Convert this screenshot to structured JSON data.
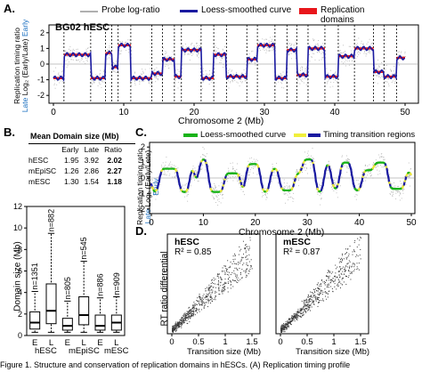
{
  "panelA": {
    "letter": "A.",
    "legend": {
      "probe": "Probe log-ratio",
      "loess": "Loess-smoothed curve",
      "domains": "Replication domains"
    },
    "cell_label": "BG02 hESC",
    "ylabel_main": "Replication timing ratio",
    "ylabel_late": "Late",
    "ylabel_early": "Early",
    "ylabel_log": "Log₂ (Early/Late)",
    "yticks": [
      "2",
      "1",
      "0",
      "-1",
      "-2"
    ],
    "xticks": [
      "0",
      "10",
      "20",
      "30",
      "40",
      "50"
    ],
    "xlabel": "Chromosome 2 (Mb)",
    "colors": {
      "probe": "#b0b0b0",
      "loess": "#1a1aa0",
      "domains": "#e8161b",
      "boundary": "#000000"
    }
  },
  "panelB": {
    "letter": "B.",
    "table_title": "Mean Domain size (Mb)",
    "columns": [
      "Early",
      "Late",
      "Ratio"
    ],
    "rows": [
      {
        "name": "hESC",
        "early": "1.95",
        "late": "3.92",
        "ratio": "2.02"
      },
      {
        "name": "mEpiSC",
        "early": "1.26",
        "late": "2.86",
        "ratio": "2.27"
      },
      {
        "name": "mESC",
        "early": "1.30",
        "late": "1.54",
        "ratio": "1.18"
      }
    ],
    "boxplot": {
      "ylabel": "Domain size (Mb)",
      "yticks": [
        "0",
        "2",
        "4",
        "6",
        "8",
        "10",
        "12"
      ],
      "xticks": [
        "E",
        "L",
        "E",
        "L",
        "E",
        "L"
      ],
      "groups": [
        "hESC",
        "mEpiSC",
        "mESC"
      ],
      "n_labels": [
        "n=1351",
        "n=882",
        "n=805",
        "n=545",
        "n=886",
        "n=909"
      ]
    }
  },
  "panelC": {
    "letter": "C.",
    "legend": {
      "loess": "Loess-smoothed curve",
      "transition": "Timing transition regions"
    },
    "ylabel_main": "Replication timing ratio",
    "ylabel_late": "Late",
    "ylabel_early": "Early",
    "ylabel_log": "Log₂ (Early/Late)",
    "yticks": [
      "2",
      "1",
      "0",
      "-1",
      "-2"
    ],
    "xticks": [
      "0",
      "10",
      "20",
      "30",
      "40",
      "50"
    ],
    "xlabel": "Chromosome 2 (Mb)",
    "colors": {
      "loess": "#19b319",
      "transition_fill": "#f0ef3c",
      "transition_line": "#1a1aa0"
    }
  },
  "panelD": {
    "letter": "D.",
    "ylabel": "RT ratio differential",
    "xlabel_left": "Transition size (Mb)",
    "xlabel_right": "Transition size (Mb)",
    "left": {
      "name": "hESC",
      "r2": "R² = 0.85"
    },
    "right": {
      "name": "mESC",
      "r2": "R² = 0.87"
    },
    "xticks": [
      "0",
      "0.5",
      "1",
      "1.5"
    ]
  },
  "caption": "Figure 1.   Structure and conservation of replication domains in hESCs. (A) Replication timing profile"
}
